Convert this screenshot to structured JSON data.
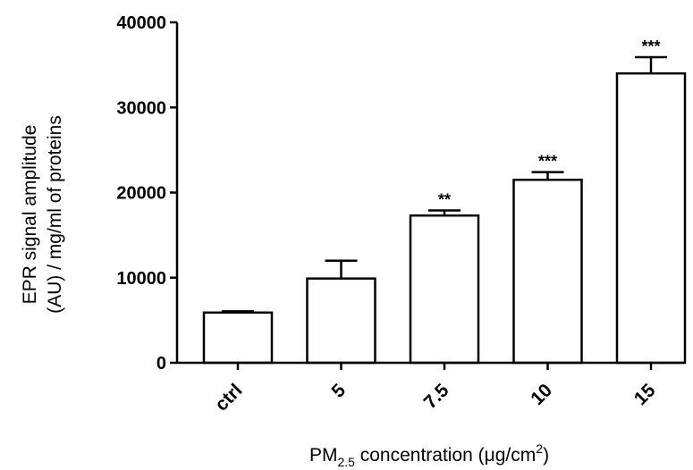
{
  "chart_data": {
    "type": "bar",
    "categories": [
      "ctrl",
      "5",
      "7.5",
      "10",
      "15"
    ],
    "values": [
      5900,
      9900,
      17300,
      21500,
      34000
    ],
    "errors": [
      150,
      2100,
      600,
      900,
      1900
    ],
    "significance": [
      "",
      "",
      "**",
      "***",
      "***"
    ],
    "title": "",
    "ylabel_line1": "EPR signal amplitude",
    "ylabel_line2": "(AU) / mg/ml of proteins",
    "xlabel": {
      "prefix": "PM",
      "subscript": "2.5",
      "middle": " concentration (μg/cm",
      "superscript": "2",
      "suffix": ")"
    },
    "ylim": [
      0,
      40000
    ],
    "yticks": [
      "0",
      "10000",
      "20000",
      "30000",
      "40000"
    ],
    "grid": false,
    "legend": "none",
    "colors": {
      "bar_fill": "#ffffff",
      "bar_stroke": "#000000",
      "axis": "#000000"
    }
  }
}
